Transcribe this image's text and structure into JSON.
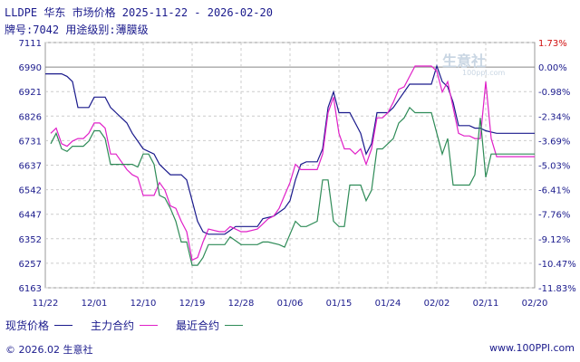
{
  "header": {
    "title": "LLDPE 华东 市场价格 2025-11-22 - 2026-02-20",
    "subtitle": "牌号:7042 用途级别:薄膜级"
  },
  "watermark": {
    "text": "生意社",
    "url": "100ppi.com"
  },
  "footer": {
    "left": "© 2026.02 生意社",
    "right": "www.100PPI.com"
  },
  "colors": {
    "spot": "#1a1a8c",
    "main": "#e020c8",
    "recent": "#2e8b57",
    "grid": "#cccccc",
    "axis_text": "#1a1a8c",
    "right_axis_text": "#d01010"
  },
  "chart_data": {
    "type": "line",
    "title": "LLDPE 华东 市场价格 2025-11-22 - 2026-02-20",
    "xlabel": "",
    "ylabel": "",
    "ylim": [
      6163,
      7111
    ],
    "y_ticks": [
      7111,
      6990,
      6921,
      6826,
      6731,
      6637,
      6542,
      6447,
      6352,
      6257,
      6163
    ],
    "y2_ticks": [
      "1.73%",
      "0.00%",
      "-0.98%",
      "-2.34%",
      "-3.69%",
      "-5.03%",
      "-6.41%",
      "-7.76%",
      "-9.12%",
      "-10.47%",
      "-11.83%"
    ],
    "x_ticks": [
      "11/22",
      "12/01",
      "12/10",
      "12/19",
      "12/28",
      "01/06",
      "01/15",
      "01/24",
      "02/02",
      "02/11",
      "02/20"
    ],
    "x_start": "2025-11-22",
    "x_end": "2026-02-20",
    "legend_position": "bottom",
    "grid": true,
    "series": [
      {
        "name": "现货价格",
        "color": "#1a1a8c",
        "points": [
          [
            "2025-11-22",
            6990
          ],
          [
            "2025-11-25",
            6990
          ],
          [
            "2025-11-26",
            6980
          ],
          [
            "2025-11-27",
            6960
          ],
          [
            "2025-11-28",
            6860
          ],
          [
            "2025-11-30",
            6860
          ],
          [
            "2025-12-01",
            6900
          ],
          [
            "2025-12-03",
            6900
          ],
          [
            "2025-12-04",
            6860
          ],
          [
            "2025-12-05",
            6840
          ],
          [
            "2025-12-07",
            6800
          ],
          [
            "2025-12-08",
            6760
          ],
          [
            "2025-12-09",
            6730
          ],
          [
            "2025-12-10",
            6700
          ],
          [
            "2025-12-12",
            6680
          ],
          [
            "2025-12-13",
            6640
          ],
          [
            "2025-12-14",
            6620
          ],
          [
            "2025-12-15",
            6600
          ],
          [
            "2025-12-17",
            6600
          ],
          [
            "2025-12-18",
            6580
          ],
          [
            "2025-12-19",
            6500
          ],
          [
            "2025-12-20",
            6420
          ],
          [
            "2025-12-21",
            6380
          ],
          [
            "2025-12-22",
            6370
          ],
          [
            "2025-12-25",
            6370
          ],
          [
            "2025-12-27",
            6400
          ],
          [
            "2025-12-29",
            6400
          ],
          [
            "2025-12-31",
            6400
          ],
          [
            "2026-01-01",
            6430
          ],
          [
            "2026-01-03",
            6440
          ],
          [
            "2026-01-05",
            6470
          ],
          [
            "2026-01-06",
            6500
          ],
          [
            "2026-01-07",
            6580
          ],
          [
            "2026-01-08",
            6640
          ],
          [
            "2026-01-09",
            6650
          ],
          [
            "2026-01-11",
            6650
          ],
          [
            "2026-01-12",
            6700
          ],
          [
            "2026-01-13",
            6860
          ],
          [
            "2026-01-14",
            6920
          ],
          [
            "2026-01-15",
            6840
          ],
          [
            "2026-01-17",
            6840
          ],
          [
            "2026-01-18",
            6800
          ],
          [
            "2026-01-19",
            6760
          ],
          [
            "2026-01-20",
            6680
          ],
          [
            "2026-01-21",
            6720
          ],
          [
            "2026-01-22",
            6840
          ],
          [
            "2026-01-24",
            6840
          ],
          [
            "2026-01-25",
            6860
          ],
          [
            "2026-01-26",
            6890
          ],
          [
            "2026-01-28",
            6950
          ],
          [
            "2026-01-29",
            6950
          ],
          [
            "2026-02-01",
            6950
          ],
          [
            "2026-02-02",
            7020
          ],
          [
            "2026-02-03",
            6960
          ],
          [
            "2026-02-04",
            6940
          ],
          [
            "2026-02-05",
            6880
          ],
          [
            "2026-02-06",
            6790
          ],
          [
            "2026-02-08",
            6790
          ],
          [
            "2026-02-09",
            6780
          ],
          [
            "2026-02-10",
            6780
          ],
          [
            "2026-02-11",
            6770
          ],
          [
            "2026-02-13",
            6760
          ],
          [
            "2026-02-20",
            6760
          ]
        ]
      },
      {
        "name": "主力合约",
        "color": "#e020c8",
        "points": [
          [
            "2025-11-23",
            6760
          ],
          [
            "2025-11-24",
            6780
          ],
          [
            "2025-11-25",
            6720
          ],
          [
            "2025-11-26",
            6710
          ],
          [
            "2025-11-27",
            6730
          ],
          [
            "2025-11-28",
            6740
          ],
          [
            "2025-11-29",
            6740
          ],
          [
            "2025-11-30",
            6760
          ],
          [
            "2025-12-01",
            6800
          ],
          [
            "2025-12-02",
            6800
          ],
          [
            "2025-12-03",
            6780
          ],
          [
            "2025-12-04",
            6680
          ],
          [
            "2025-12-05",
            6680
          ],
          [
            "2025-12-07",
            6620
          ],
          [
            "2025-12-08",
            6600
          ],
          [
            "2025-12-09",
            6590
          ],
          [
            "2025-12-10",
            6520
          ],
          [
            "2025-12-11",
            6520
          ],
          [
            "2025-12-12",
            6520
          ],
          [
            "2025-12-13",
            6570
          ],
          [
            "2025-12-14",
            6540
          ],
          [
            "2025-12-15",
            6480
          ],
          [
            "2025-12-16",
            6470
          ],
          [
            "2025-12-17",
            6420
          ],
          [
            "2025-12-18",
            6380
          ],
          [
            "2025-12-19",
            6270
          ],
          [
            "2025-12-20",
            6280
          ],
          [
            "2025-12-21",
            6340
          ],
          [
            "2025-12-22",
            6390
          ],
          [
            "2025-12-24",
            6380
          ],
          [
            "2025-12-25",
            6380
          ],
          [
            "2025-12-26",
            6400
          ],
          [
            "2025-12-28",
            6380
          ],
          [
            "2025-12-29",
            6380
          ],
          [
            "2025-12-31",
            6390
          ],
          [
            "2026-01-01",
            6410
          ],
          [
            "2026-01-02",
            6430
          ],
          [
            "2026-01-03",
            6440
          ],
          [
            "2026-01-04",
            6470
          ],
          [
            "2026-01-05",
            6520
          ],
          [
            "2026-01-06",
            6570
          ],
          [
            "2026-01-07",
            6640
          ],
          [
            "2026-01-08",
            6620
          ],
          [
            "2026-01-11",
            6620
          ],
          [
            "2026-01-12",
            6680
          ],
          [
            "2026-01-13",
            6840
          ],
          [
            "2026-01-14",
            6900
          ],
          [
            "2026-01-15",
            6760
          ],
          [
            "2026-01-16",
            6700
          ],
          [
            "2026-01-17",
            6700
          ],
          [
            "2026-01-18",
            6680
          ],
          [
            "2026-01-19",
            6700
          ],
          [
            "2026-01-20",
            6640
          ],
          [
            "2026-01-21",
            6700
          ],
          [
            "2026-01-22",
            6820
          ],
          [
            "2026-01-23",
            6820
          ],
          [
            "2026-01-24",
            6840
          ],
          [
            "2026-01-25",
            6880
          ],
          [
            "2026-01-26",
            6930
          ],
          [
            "2026-01-27",
            6940
          ],
          [
            "2026-01-28",
            6980
          ],
          [
            "2026-01-29",
            7020
          ],
          [
            "2026-02-01",
            7020
          ],
          [
            "2026-02-02",
            7000
          ],
          [
            "2026-02-03",
            6920
          ],
          [
            "2026-02-04",
            6960
          ],
          [
            "2026-02-05",
            6860
          ],
          [
            "2026-02-06",
            6760
          ],
          [
            "2026-02-07",
            6750
          ],
          [
            "2026-02-08",
            6750
          ],
          [
            "2026-02-09",
            6740
          ],
          [
            "2026-02-10",
            6740
          ],
          [
            "2026-02-11",
            6960
          ],
          [
            "2026-02-12",
            6740
          ],
          [
            "2026-02-13",
            6670
          ],
          [
            "2026-02-20",
            6670
          ]
        ]
      },
      {
        "name": "最近合约",
        "color": "#2e8b57",
        "points": [
          [
            "2025-11-23",
            6720
          ],
          [
            "2025-11-24",
            6760
          ],
          [
            "2025-11-25",
            6700
          ],
          [
            "2025-11-26",
            6690
          ],
          [
            "2025-11-27",
            6710
          ],
          [
            "2025-11-28",
            6710
          ],
          [
            "2025-11-29",
            6710
          ],
          [
            "2025-11-30",
            6730
          ],
          [
            "2025-12-01",
            6770
          ],
          [
            "2025-12-02",
            6770
          ],
          [
            "2025-12-03",
            6740
          ],
          [
            "2025-12-04",
            6640
          ],
          [
            "2025-12-07",
            6640
          ],
          [
            "2025-12-08",
            6640
          ],
          [
            "2025-12-09",
            6630
          ],
          [
            "2025-12-10",
            6680
          ],
          [
            "2025-12-11",
            6680
          ],
          [
            "2025-12-12",
            6640
          ],
          [
            "2025-12-13",
            6520
          ],
          [
            "2025-12-14",
            6510
          ],
          [
            "2025-12-15",
            6470
          ],
          [
            "2025-12-16",
            6420
          ],
          [
            "2025-12-17",
            6340
          ],
          [
            "2025-12-18",
            6340
          ],
          [
            "2025-12-19",
            6250
          ],
          [
            "2025-12-20",
            6250
          ],
          [
            "2025-12-21",
            6280
          ],
          [
            "2025-12-22",
            6330
          ],
          [
            "2025-12-25",
            6330
          ],
          [
            "2025-12-26",
            6360
          ],
          [
            "2025-12-28",
            6330
          ],
          [
            "2025-12-31",
            6330
          ],
          [
            "2026-01-01",
            6340
          ],
          [
            "2026-01-02",
            6340
          ],
          [
            "2026-01-04",
            6330
          ],
          [
            "2026-01-05",
            6320
          ],
          [
            "2026-01-06",
            6370
          ],
          [
            "2026-01-07",
            6420
          ],
          [
            "2026-01-08",
            6400
          ],
          [
            "2026-01-09",
            6400
          ],
          [
            "2026-01-11",
            6420
          ],
          [
            "2026-01-12",
            6580
          ],
          [
            "2026-01-13",
            6580
          ],
          [
            "2026-01-14",
            6420
          ],
          [
            "2026-01-15",
            6400
          ],
          [
            "2026-01-16",
            6400
          ],
          [
            "2026-01-17",
            6560
          ],
          [
            "2026-01-19",
            6560
          ],
          [
            "2026-01-20",
            6500
          ],
          [
            "2026-01-21",
            6540
          ],
          [
            "2026-01-22",
            6700
          ],
          [
            "2026-01-23",
            6700
          ],
          [
            "2026-01-24",
            6720
          ],
          [
            "2026-01-25",
            6740
          ],
          [
            "2026-01-26",
            6800
          ],
          [
            "2026-01-27",
            6820
          ],
          [
            "2026-01-28",
            6860
          ],
          [
            "2026-01-29",
            6840
          ],
          [
            "2026-02-01",
            6840
          ],
          [
            "2026-02-02",
            6760
          ],
          [
            "2026-02-03",
            6680
          ],
          [
            "2026-02-04",
            6740
          ],
          [
            "2026-02-05",
            6560
          ],
          [
            "2026-02-07",
            6560
          ],
          [
            "2026-02-08",
            6560
          ],
          [
            "2026-02-09",
            6600
          ],
          [
            "2026-02-10",
            6820
          ],
          [
            "2026-02-11",
            6590
          ],
          [
            "2026-02-12",
            6680
          ],
          [
            "2026-02-20",
            6680
          ]
        ]
      }
    ]
  }
}
